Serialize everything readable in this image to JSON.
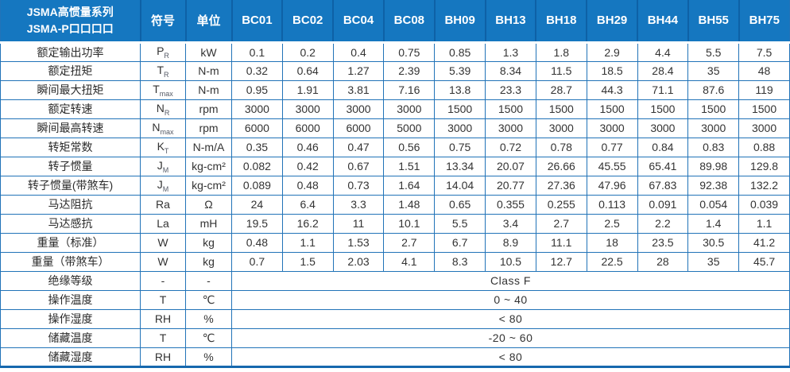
{
  "table": {
    "header": {
      "title_line1": "JSMA高惯量系列",
      "title_line2": "JSMA-P口口口口",
      "symbol_label": "符号",
      "unit_label": "单位",
      "models": [
        "BC01",
        "BC02",
        "BC04",
        "BC08",
        "BH09",
        "BH13",
        "BH18",
        "BH29",
        "BH44",
        "BH55",
        "BH75"
      ]
    },
    "rows": [
      {
        "label": "额定输出功率",
        "symbol_base": "P",
        "symbol_sub": "R",
        "unit": "kW",
        "values": [
          "0.1",
          "0.2",
          "0.4",
          "0.75",
          "0.85",
          "1.3",
          "1.8",
          "2.9",
          "4.4",
          "5.5",
          "7.5"
        ]
      },
      {
        "label": "额定扭矩",
        "symbol_base": "T",
        "symbol_sub": "R",
        "unit": "N-m",
        "values": [
          "0.32",
          "0.64",
          "1.27",
          "2.39",
          "5.39",
          "8.34",
          "11.5",
          "18.5",
          "28.4",
          "35",
          "48"
        ]
      },
      {
        "label": "瞬间最大扭矩",
        "symbol_base": "T",
        "symbol_sub": "max",
        "unit": "N-m",
        "values": [
          "0.95",
          "1.91",
          "3.81",
          "7.16",
          "13.8",
          "23.3",
          "28.7",
          "44.3",
          "71.1",
          "87.6",
          "119"
        ]
      },
      {
        "label": "额定转速",
        "symbol_base": "N",
        "symbol_sub": "R",
        "unit": "rpm",
        "values": [
          "3000",
          "3000",
          "3000",
          "3000",
          "1500",
          "1500",
          "1500",
          "1500",
          "1500",
          "1500",
          "1500"
        ]
      },
      {
        "label": "瞬间最高转速",
        "symbol_base": "N",
        "symbol_sub": "max",
        "unit": "rpm",
        "values": [
          "6000",
          "6000",
          "6000",
          "5000",
          "3000",
          "3000",
          "3000",
          "3000",
          "3000",
          "3000",
          "3000"
        ]
      },
      {
        "label": "转矩常数",
        "symbol_base": "K",
        "symbol_sub": "T",
        "unit": "N-m/A",
        "values": [
          "0.35",
          "0.46",
          "0.47",
          "0.56",
          "0.75",
          "0.72",
          "0.78",
          "0.77",
          "0.84",
          "0.83",
          "0.88"
        ]
      },
      {
        "label": "转子惯量",
        "symbol_base": "J",
        "symbol_sub": "M",
        "unit": "kg-cm²",
        "values": [
          "0.082",
          "0.42",
          "0.67",
          "1.51",
          "13.34",
          "20.07",
          "26.66",
          "45.55",
          "65.41",
          "89.98",
          "129.8"
        ]
      },
      {
        "label": "转子惯量(带煞车)",
        "symbol_base": "J",
        "symbol_sub": "M",
        "unit": "kg-cm²",
        "values": [
          "0.089",
          "0.48",
          "0.73",
          "1.64",
          "14.04",
          "20.77",
          "27.36",
          "47.96",
          "67.83",
          "92.38",
          "132.2"
        ]
      },
      {
        "label": "马达阻抗",
        "symbol_base": "Ra",
        "symbol_sub": "",
        "unit": "Ω",
        "values": [
          "24",
          "6.4",
          "3.3",
          "1.48",
          "0.65",
          "0.355",
          "0.255",
          "0.113",
          "0.091",
          "0.054",
          "0.039"
        ]
      },
      {
        "label": "马达感抗",
        "symbol_base": "La",
        "symbol_sub": "",
        "unit": "mH",
        "values": [
          "19.5",
          "16.2",
          "11",
          "10.1",
          "5.5",
          "3.4",
          "2.7",
          "2.5",
          "2.2",
          "1.4",
          "1.1"
        ]
      },
      {
        "label": "重量（标准）",
        "symbol_base": "W",
        "symbol_sub": "",
        "unit": "kg",
        "values": [
          "0.48",
          "1.1",
          "1.53",
          "2.7",
          "6.7",
          "8.9",
          "11.1",
          "18",
          "23.5",
          "30.5",
          "41.2"
        ]
      },
      {
        "label": "重量（带煞车）",
        "symbol_base": "W",
        "symbol_sub": "",
        "unit": "kg",
        "values": [
          "0.7",
          "1.5",
          "2.03",
          "4.1",
          "8.3",
          "10.5",
          "12.7",
          "22.5",
          "28",
          "35",
          "45.7"
        ]
      }
    ],
    "merged_rows": [
      {
        "label": "绝缘等级",
        "symbol_base": "-",
        "symbol_sub": "",
        "unit": "-",
        "value": "Class F"
      },
      {
        "label": "操作温度",
        "symbol_base": "T",
        "symbol_sub": "",
        "unit": "℃",
        "value": "0 ~ 40"
      },
      {
        "label": "操作湿度",
        "symbol_base": "RH",
        "symbol_sub": "",
        "unit": "%",
        "value": "< 80"
      },
      {
        "label": "储藏温度",
        "symbol_base": "T",
        "symbol_sub": "",
        "unit": "℃",
        "value": "-20 ~ 60"
      },
      {
        "label": "储藏湿度",
        "symbol_base": "RH",
        "symbol_sub": "",
        "unit": "%",
        "value": "< 80"
      }
    ],
    "colors": {
      "header_bg": "#1577c0",
      "header_text": "#ffffff",
      "border": "#2173b8",
      "header_divider": "#0e61a6",
      "cell_text": "#333333"
    },
    "layout": {
      "label_col_width": 176,
      "symbol_col_width": 57,
      "unit_col_width": 58,
      "model_col_count": 11
    }
  }
}
